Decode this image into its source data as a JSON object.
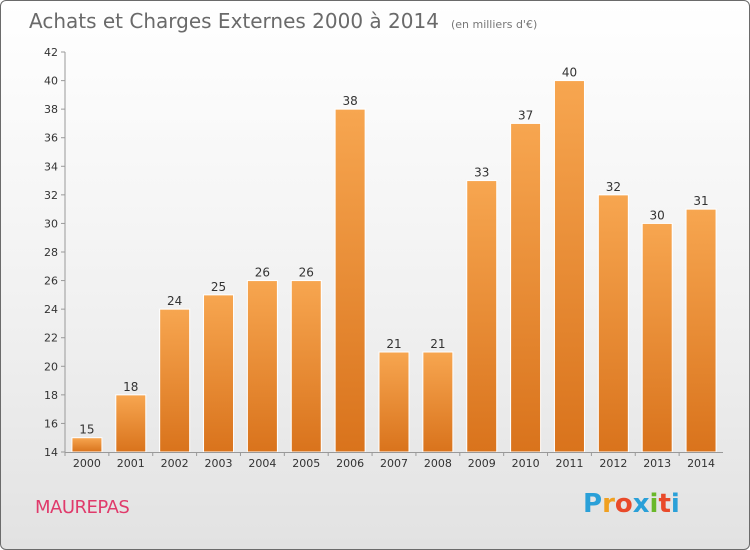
{
  "header": {
    "title": "Achats et Charges Externes 2000 à 2014",
    "subtitle": "(en milliers d'€)"
  },
  "footer": {
    "place": "MAUREPAS",
    "logo_letters": [
      "P",
      "r",
      "o",
      "x",
      "i",
      "t",
      "i"
    ],
    "logo_colors": [
      "#2aa0d8",
      "#f0a020",
      "#e94a2a",
      "#2aa0d8",
      "#6ab82a",
      "#e94a2a",
      "#2aa0d8"
    ]
  },
  "chart_data": {
    "type": "bar",
    "title": "Achats et Charges Externes 2000 à 2014",
    "subtitle": "(en milliers d'€)",
    "categories": [
      "2000",
      "2001",
      "2002",
      "2003",
      "2004",
      "2005",
      "2006",
      "2007",
      "2008",
      "2009",
      "2010",
      "2011",
      "2012",
      "2013",
      "2014"
    ],
    "values": [
      15,
      18,
      24,
      25,
      26,
      26,
      38,
      21,
      21,
      33,
      37,
      40,
      32,
      30,
      31
    ],
    "ylim": [
      14,
      42
    ],
    "yticks": [
      14,
      16,
      18,
      20,
      22,
      24,
      26,
      28,
      30,
      32,
      34,
      36,
      38,
      40,
      42
    ],
    "grid": false,
    "bar_color_top": "#f7a650",
    "bar_color_bottom": "#d9731c"
  }
}
